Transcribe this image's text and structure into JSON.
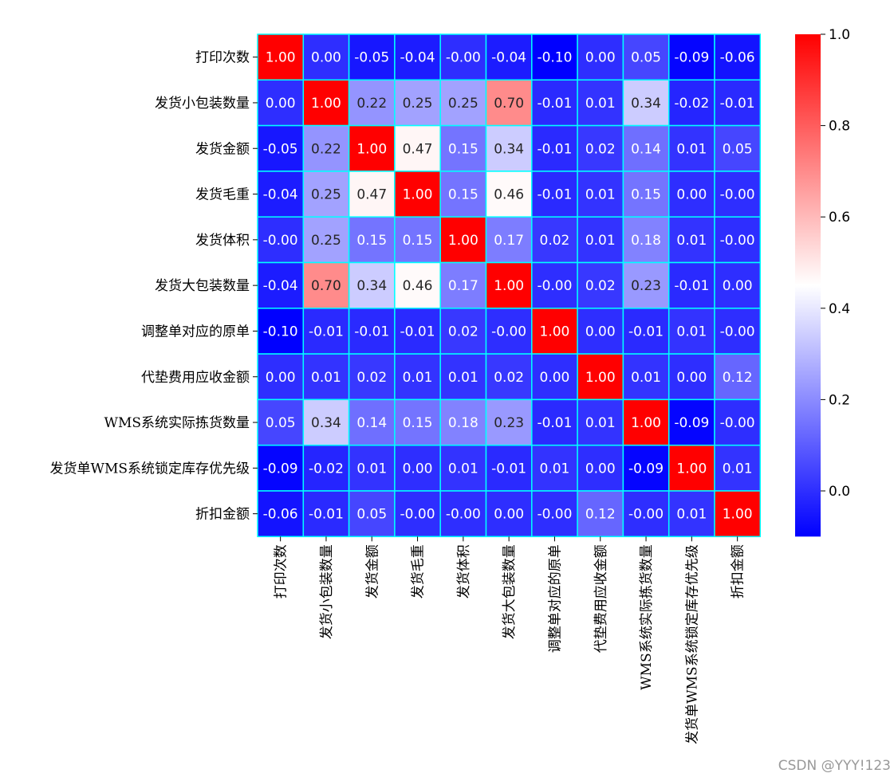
{
  "chart_data": {
    "type": "heatmap",
    "title": "",
    "xlabel": "",
    "ylabel": "",
    "labels": [
      "打印次数",
      "发货小包装数量",
      "发货金额",
      "发货毛重",
      "发货体积",
      "发货大包装数量",
      "调整单对应的原单",
      "代垫费用应收金额",
      "WMS系统实际拣货数量",
      "发货单WMS系统锁定库存优先级",
      "折扣金额"
    ],
    "values": [
      [
        "1.00",
        "0.00",
        "-0.05",
        "-0.04",
        "-0.00",
        "-0.04",
        "-0.10",
        "0.00",
        "0.05",
        "-0.09",
        "-0.06"
      ],
      [
        "0.00",
        "1.00",
        "0.22",
        "0.25",
        "0.25",
        "0.70",
        "-0.01",
        "0.01",
        "0.34",
        "-0.02",
        "-0.01"
      ],
      [
        "-0.05",
        "0.22",
        "1.00",
        "0.47",
        "0.15",
        "0.34",
        "-0.01",
        "0.02",
        "0.14",
        "0.01",
        "0.05"
      ],
      [
        "-0.04",
        "0.25",
        "0.47",
        "1.00",
        "0.15",
        "0.46",
        "-0.01",
        "0.01",
        "0.15",
        "0.00",
        "-0.00"
      ],
      [
        "-0.00",
        "0.25",
        "0.15",
        "0.15",
        "1.00",
        "0.17",
        "0.02",
        "0.01",
        "0.18",
        "0.01",
        "-0.00"
      ],
      [
        "-0.04",
        "0.70",
        "0.34",
        "0.46",
        "0.17",
        "1.00",
        "-0.00",
        "0.02",
        "0.23",
        "-0.01",
        "0.00"
      ],
      [
        "-0.10",
        "-0.01",
        "-0.01",
        "-0.01",
        "0.02",
        "-0.00",
        "1.00",
        "0.00",
        "-0.01",
        "0.01",
        "-0.00"
      ],
      [
        "0.00",
        "0.01",
        "0.02",
        "0.01",
        "0.01",
        "0.02",
        "0.00",
        "1.00",
        "0.01",
        "0.00",
        "0.12"
      ],
      [
        "0.05",
        "0.34",
        "0.14",
        "0.15",
        "0.18",
        "0.23",
        "-0.01",
        "0.01",
        "1.00",
        "-0.09",
        "-0.00"
      ],
      [
        "-0.09",
        "-0.02",
        "0.01",
        "0.00",
        "0.01",
        "-0.01",
        "0.01",
        "0.00",
        "-0.09",
        "1.00",
        "0.01"
      ],
      [
        "-0.06",
        "-0.01",
        "0.05",
        "-0.00",
        "-0.00",
        "0.00",
        "-0.00",
        "0.12",
        "-0.00",
        "0.01",
        "1.00"
      ]
    ],
    "colormap": "bwr",
    "vmin": -0.1,
    "vmax": 1.0,
    "colorbar_ticks": [
      "0.0",
      "0.2",
      "0.4",
      "0.6",
      "0.8",
      "1.0"
    ],
    "cell_border_color": "#00ffff",
    "grid": false,
    "legend": "colorbar-right"
  },
  "watermark": "CSDN @YYY!123"
}
